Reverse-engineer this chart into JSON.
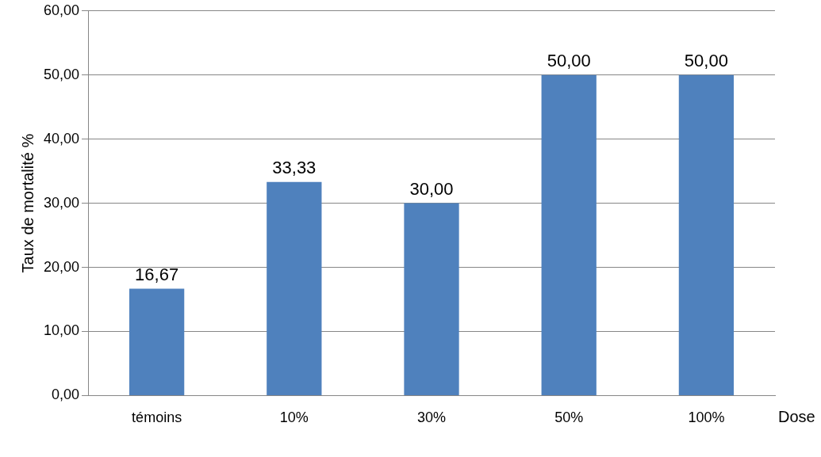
{
  "chart_data": {
    "type": "bar",
    "xlabel": "Dose",
    "ylabel": "Taux de mortalité %",
    "categories": [
      "témoins",
      "10%",
      "30%",
      "50%",
      "100%"
    ],
    "values": [
      16.67,
      33.33,
      30,
      50,
      50
    ],
    "value_labels": [
      "16,67",
      "33,33",
      "30,00",
      "50,00",
      "50,00"
    ],
    "color": "#4f81bd",
    "ylim": [
      0,
      60
    ],
    "yticks": [
      {
        "value": 0,
        "label": "0,00"
      },
      {
        "value": 10,
        "label": "10,00"
      },
      {
        "value": 20,
        "label": "20,00"
      },
      {
        "value": 30,
        "label": "30,00"
      },
      {
        "value": 40,
        "label": "40,00"
      },
      {
        "value": 50,
        "label": "50,00"
      },
      {
        "value": 60,
        "label": "60,00"
      }
    ],
    "grid": "y",
    "legend": false
  }
}
